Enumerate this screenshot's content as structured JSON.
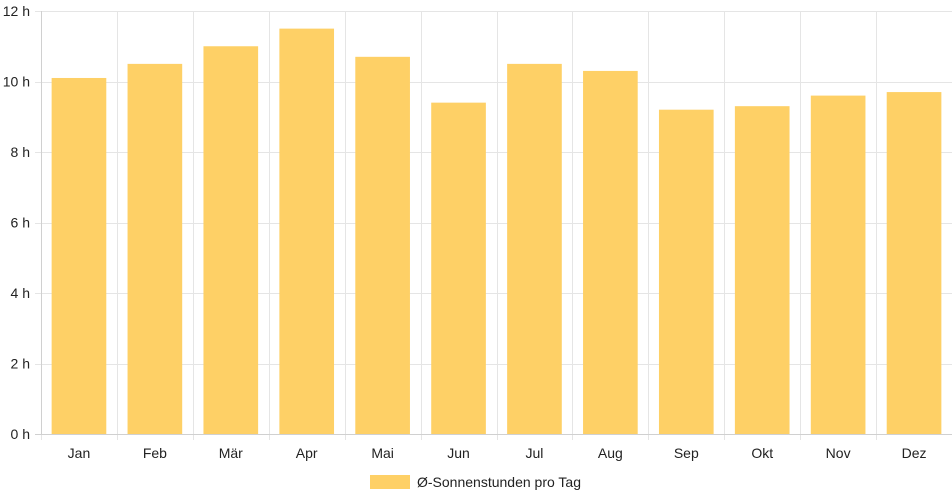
{
  "chart_data": {
    "type": "bar",
    "categories": [
      "Jan",
      "Feb",
      "Mär",
      "Apr",
      "Mai",
      "Jun",
      "Jul",
      "Aug",
      "Sep",
      "Okt",
      "Nov",
      "Dez"
    ],
    "series": [
      {
        "name": "Ø-Sonnenstunden pro Tag",
        "values": [
          10.1,
          10.5,
          11.0,
          11.5,
          10.7,
          9.4,
          10.5,
          10.3,
          9.2,
          9.3,
          9.6,
          9.7
        ],
        "color": "#fed066"
      }
    ],
    "title": "",
    "xlabel": "",
    "ylabel": "",
    "ylim": [
      0,
      12
    ],
    "y_ticks": [
      {
        "value": 0,
        "label": "0 h"
      },
      {
        "value": 2,
        "label": "2 h"
      },
      {
        "value": 4,
        "label": "4 h"
      },
      {
        "value": 6,
        "label": "6 h"
      },
      {
        "value": 8,
        "label": "8 h"
      },
      {
        "value": 10,
        "label": "10 h"
      },
      {
        "value": 12,
        "label": "12 h"
      }
    ],
    "grid": true,
    "grid_color": "#e5e5e5",
    "axis_color": "#d0d0d0",
    "legend_position": "bottom"
  }
}
